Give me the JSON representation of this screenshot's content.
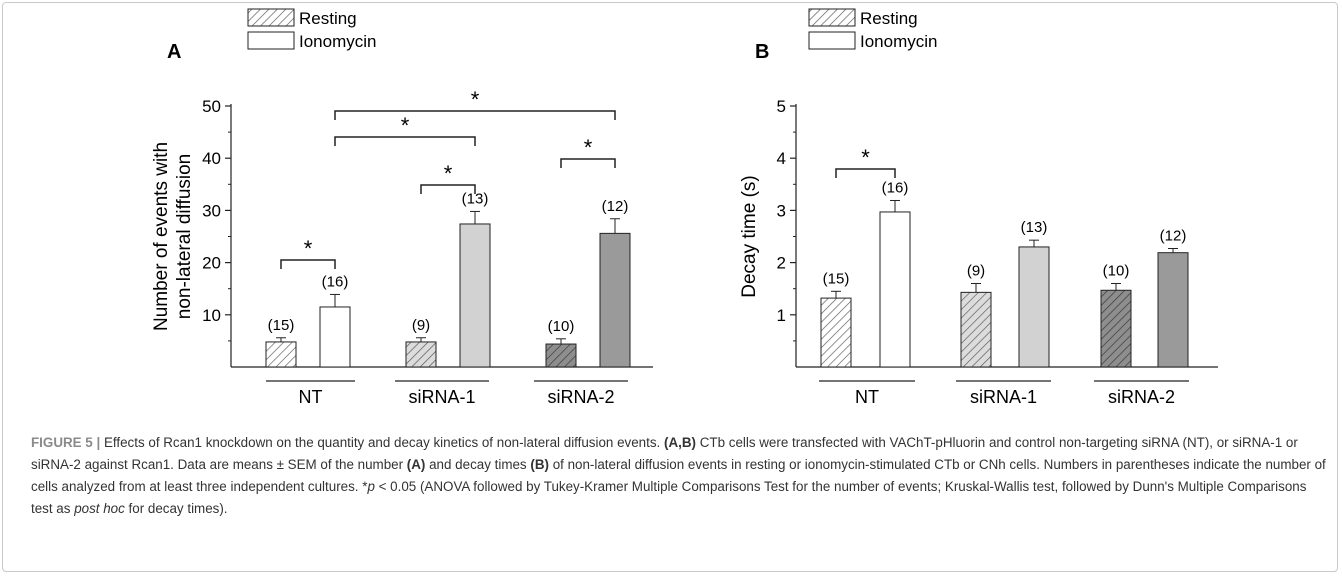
{
  "chart_data": [
    {
      "type": "bar",
      "panel_label": "A",
      "categories": [
        "NT",
        "siRNA-1",
        "siRNA-2"
      ],
      "series": [
        {
          "name": "Resting",
          "values": [
            4.8,
            4.8,
            4.4
          ],
          "errors": [
            0.8,
            0.8,
            1.0
          ],
          "n": [
            "(15)",
            "(9)",
            "(10)"
          ]
        },
        {
          "name": "Ionomycin",
          "values": [
            11.5,
            27.4,
            25.6
          ],
          "errors": [
            2.4,
            2.4,
            2.8
          ],
          "n": [
            "(16)",
            "(13)",
            "(12)"
          ]
        }
      ],
      "ylabel_lines": [
        "Number of events with",
        "non-lateral diffusion"
      ],
      "ylim": [
        0,
        50
      ],
      "yticks": [
        10,
        20,
        30,
        40,
        50
      ],
      "significance_marker": "*",
      "significance": [
        {
          "from": "NT-Resting",
          "to": "NT-Ionomycin"
        },
        {
          "from": "siRNA-1-Resting",
          "to": "siRNA-1-Ionomycin"
        },
        {
          "from": "siRNA-2-Resting",
          "to": "siRNA-2-Ionomycin"
        },
        {
          "from": "NT-Ionomycin",
          "to": "siRNA-1-Ionomycin"
        },
        {
          "from": "NT-Ionomycin",
          "to": "siRNA-2-Ionomycin"
        }
      ],
      "legend_position": "top-left"
    },
    {
      "type": "bar",
      "panel_label": "B",
      "categories": [
        "NT",
        "siRNA-1",
        "siRNA-2"
      ],
      "series": [
        {
          "name": "Resting",
          "values": [
            1.32,
            1.43,
            1.47
          ],
          "errors": [
            0.13,
            0.17,
            0.13
          ],
          "n": [
            "(15)",
            "(9)",
            "(10)"
          ]
        },
        {
          "name": "Ionomycin",
          "values": [
            2.97,
            2.3,
            2.19
          ],
          "errors": [
            0.22,
            0.13,
            0.08
          ],
          "n": [
            "(16)",
            "(13)",
            "(12)"
          ]
        }
      ],
      "ylabel_lines": [
        "Decay time (s)"
      ],
      "ylim": [
        0,
        5
      ],
      "yticks": [
        1,
        2,
        3,
        4,
        5
      ],
      "significance_marker": "*",
      "significance": [
        {
          "from": "NT-Resting",
          "to": "NT-Ionomycin"
        }
      ],
      "legend_position": "top-left"
    }
  ],
  "colors": {
    "nt_ionomycin": "#ffffff",
    "sirna1_ionomycin": "#d2d2d2",
    "sirna2_ionomycin": "#9a9a9a",
    "nt_resting_bg": "#ffffff",
    "sirna1_resting_bg": "#dcdcdc",
    "sirna2_resting_bg": "#8e8e8e"
  },
  "caption": {
    "figure_label": "FIGURE 5 |",
    "title": "Effects of Rcan1 knockdown on the quantity and decay kinetics of non-lateral diffusion events.",
    "part1_label": "(A,B)",
    "part1": "CTb cells were transfected with VAChT-pHluorin and control non-targeting siRNA (NT), or siRNA-1 or siRNA-2 against Rcan1. Data are means ± SEM of the number",
    "part2_label": "(A)",
    "part2": "and decay times",
    "part3_label": "(B)",
    "part3": "of non-lateral diffusion events in resting or ionomycin-stimulated CTb or CNh cells. Numbers in parentheses indicate the number of cells analyzed from at least three independent cultures. *",
    "p_symbol": "p",
    "part4": "< 0.05 (ANOVA followed by Tukey-Kramer Multiple Comparisons Test for the number of events; Kruskal-Wallis test, followed by Dunn's Multiple Comparisons test as",
    "post_hoc": "post hoc",
    "part5": "for decay times)."
  }
}
